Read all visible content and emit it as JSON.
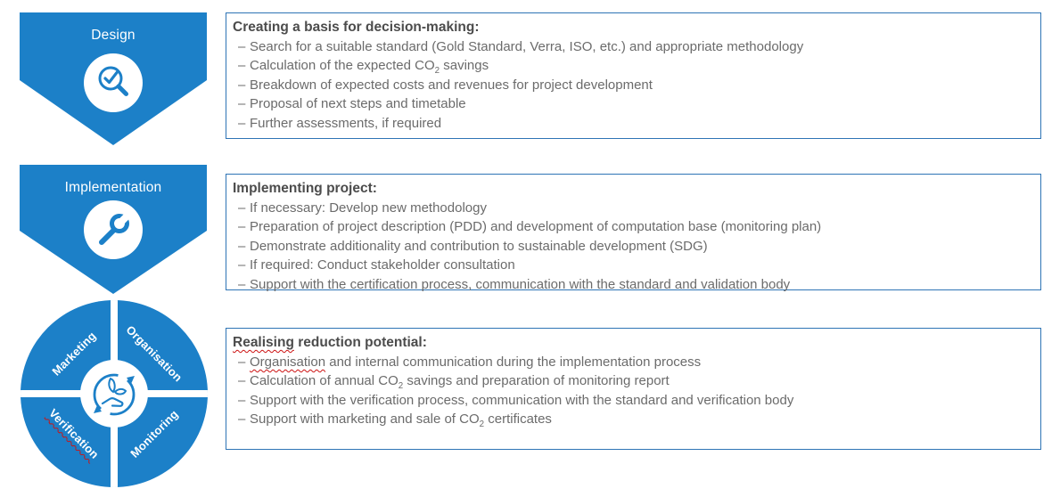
{
  "colors": {
    "stage_blue": "#1C80C8",
    "box_border": "#2E74B5",
    "title_gray": "#4C4C4C",
    "body_gray": "#6B6B6B",
    "spellcheck_red": "#CC1111"
  },
  "bullet_marker": "–",
  "stages": [
    {
      "label": "Design",
      "icon": "magnifier-check-icon",
      "box": {
        "title": [
          {
            "text": "Creating a basis for decision-making:"
          }
        ],
        "bullets": [
          [
            {
              "text": "Search for a suitable standard (Gold Standard, Verra, ISO, etc.) and appropriate methodology"
            }
          ],
          [
            {
              "text": "Calculation of the expected CO"
            },
            {
              "text": "2",
              "sub": true
            },
            {
              "text": " savings"
            }
          ],
          [
            {
              "text": "Breakdown of expected costs and revenues for project development"
            }
          ],
          [
            {
              "text": "Proposal of next steps and timetable"
            }
          ],
          [
            {
              "text": "Further assessments, if required"
            }
          ]
        ]
      }
    },
    {
      "label": "Implementation",
      "icon": "wrench-icon",
      "box": {
        "title": [
          {
            "text": "Implementing project:"
          }
        ],
        "bullets": [
          [
            {
              "text": "If necessary: Develop new methodology"
            }
          ],
          [
            {
              "text": "Preparation of project description (PDD) and development of computation base (monitoring plan)"
            }
          ],
          [
            {
              "text": "Demonstrate additionality and contribution to sustainable development (SDG)"
            }
          ],
          [
            {
              "text": "If required: Conduct stakeholder consultation"
            }
          ],
          [
            {
              "text": "Support with the certification process, communication with the standard and validation body"
            }
          ]
        ]
      }
    },
    {
      "wheel": {
        "icon": "sustainability-cycle-icon",
        "labels": [
          {
            "text": "Marketing"
          },
          {
            "text": "Organisation"
          },
          {
            "text": "Verification",
            "squiggle": true
          },
          {
            "text": "Monitoring"
          }
        ]
      },
      "box": {
        "title": [
          {
            "text": "Realising",
            "squiggle": true
          },
          {
            "text": " reduction potential:"
          }
        ],
        "bullets": [
          [
            {
              "text": "Organisation",
              "squiggle": true
            },
            {
              "text": " and internal communication during the implementation process"
            }
          ],
          [
            {
              "text": "Calculation of annual CO"
            },
            {
              "text": "2",
              "sub": true
            },
            {
              "text": " savings and preparation of monitoring report"
            }
          ],
          [
            {
              "text": "Support with the verification process, communication with the standard and verification body"
            }
          ],
          [
            {
              "text": "Support with marketing and sale of CO"
            },
            {
              "text": "2",
              "sub": true
            },
            {
              "text": " certificates"
            }
          ]
        ]
      }
    }
  ]
}
